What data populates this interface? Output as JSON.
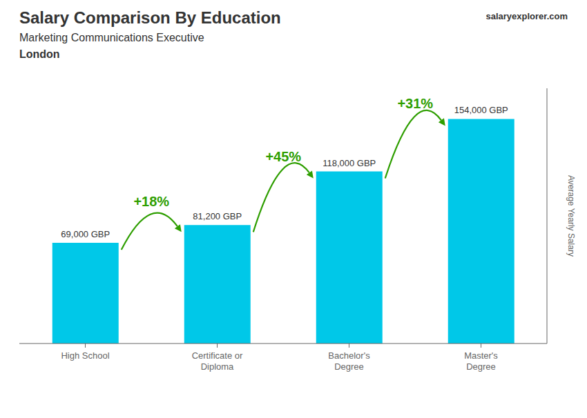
{
  "chart_data": {
    "type": "bar",
    "title": "Salary Comparison By Education",
    "subtitle": "Marketing Communications Executive",
    "ylabel": "Average Yearly Salary",
    "categories": [
      "High School",
      "Certificate or\nDiploma",
      "Bachelor's\nDegree",
      "Master's\nDegree"
    ],
    "values": [
      69000,
      81200,
      118000,
      154000
    ],
    "value_labels": [
      "69,000 GBP",
      "81,200 GBP",
      "118,000 GBP",
      "154,000 GBP"
    ],
    "data_labels": true,
    "color": "#00c8e8",
    "ylim": [
      0,
      175000
    ],
    "tick_labels": "x",
    "grid": false,
    "annotations": [
      {
        "text": "London"
      },
      {
        "text": "salaryexplorer.com"
      },
      {
        "text": "+18%",
        "from": 0,
        "to": 1
      },
      {
        "text": "+45%",
        "from": 1,
        "to": 2
      },
      {
        "text": "+31%",
        "from": 2,
        "to": 3
      }
    ]
  }
}
